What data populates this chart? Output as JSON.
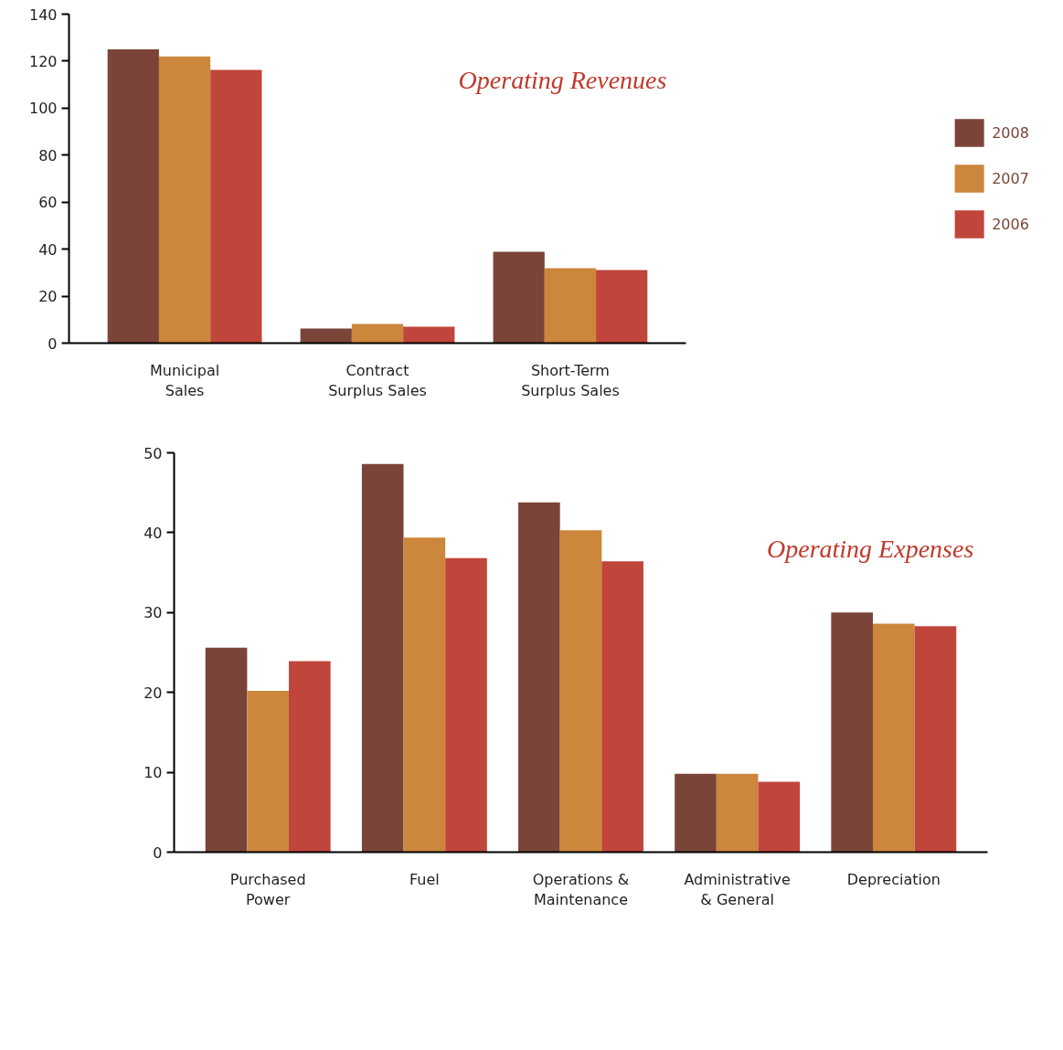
{
  "chart_data": [
    {
      "type": "bar",
      "title": "Operating Revenues",
      "categories": [
        "Municipal Sales",
        "Contract Surplus Sales",
        "Short-Term Surplus Sales"
      ],
      "series": [
        {
          "name": "2008",
          "color": "#7a4538",
          "values": [
            125,
            6.2,
            38.9
          ]
        },
        {
          "name": "2007",
          "color": "#cc873c",
          "values": [
            122,
            8.2,
            31.9
          ]
        },
        {
          "name": "2006",
          "color": "#c0453a",
          "values": [
            116.3,
            7,
            31.1
          ]
        }
      ],
      "ylim": [
        0,
        140
      ],
      "yticks": [
        0,
        20,
        40,
        60,
        80,
        100,
        120,
        140
      ],
      "legend": "right"
    },
    {
      "type": "bar",
      "title": "Operating Expenses",
      "categories": [
        "Purchased Power",
        "Fuel",
        "Operations & Maintenance",
        "Administrative & General",
        "Depreciation"
      ],
      "series": [
        {
          "color": "#7a4538",
          "values": [
            25.6,
            48.6,
            43.8,
            9.8,
            30
          ]
        },
        {
          "color": "#cc873c",
          "values": [
            20.2,
            39.4,
            40.3,
            9.8,
            28.6
          ]
        },
        {
          "color": "#c0453a",
          "values": [
            23.9,
            36.8,
            36.4,
            8.8,
            28.3
          ]
        }
      ],
      "ylim": [
        0,
        50
      ],
      "yticks": [
        0,
        10,
        20,
        30,
        40,
        50
      ]
    }
  ]
}
